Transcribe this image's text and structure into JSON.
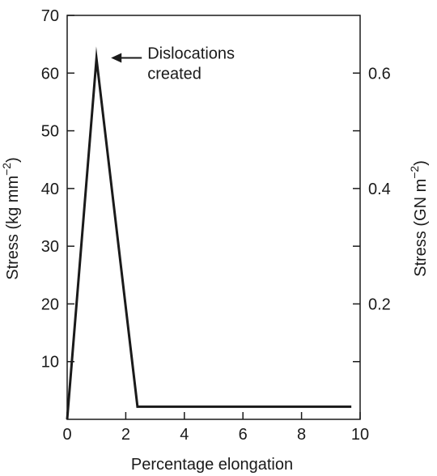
{
  "chart_data": {
    "type": "line",
    "xlabel": "Percentage elongation",
    "ylabel": "Stress (kg mm",
    "ylabel_sup": "−2",
    "ylabel_close": ")",
    "y2label": "Stress (GN m",
    "y2label_sup": "−2",
    "y2label_close": ")",
    "xlim": [
      0,
      10
    ],
    "ylim": [
      0,
      70
    ],
    "y2lim": [
      0,
      0.7
    ],
    "xticks": [
      0,
      2,
      4,
      6,
      8,
      10
    ],
    "xtick_labels": [
      "0",
      "2",
      "4",
      "6",
      "8",
      "10"
    ],
    "yticks": [
      10,
      20,
      30,
      40,
      50,
      60,
      70
    ],
    "ytick_labels": [
      "10",
      "20",
      "30",
      "40",
      "50",
      "60",
      "70"
    ],
    "y2ticks": [
      0.2,
      0.4,
      0.6
    ],
    "y2tick_labels": [
      "0.2",
      "0.4",
      "0.6"
    ],
    "grid": false,
    "series": [
      {
        "x": [
          0,
          1.0,
          2.4,
          9.7
        ],
        "y": [
          0,
          62.5,
          2.2,
          2.2
        ]
      }
    ],
    "annotations": [
      {
        "lines": [
          "Dislocations",
          "created"
        ],
        "point": [
          1.0,
          62.5
        ]
      }
    ],
    "colors": {
      "line": "#1a1a1a",
      "axis": "#1a1a1a"
    }
  }
}
